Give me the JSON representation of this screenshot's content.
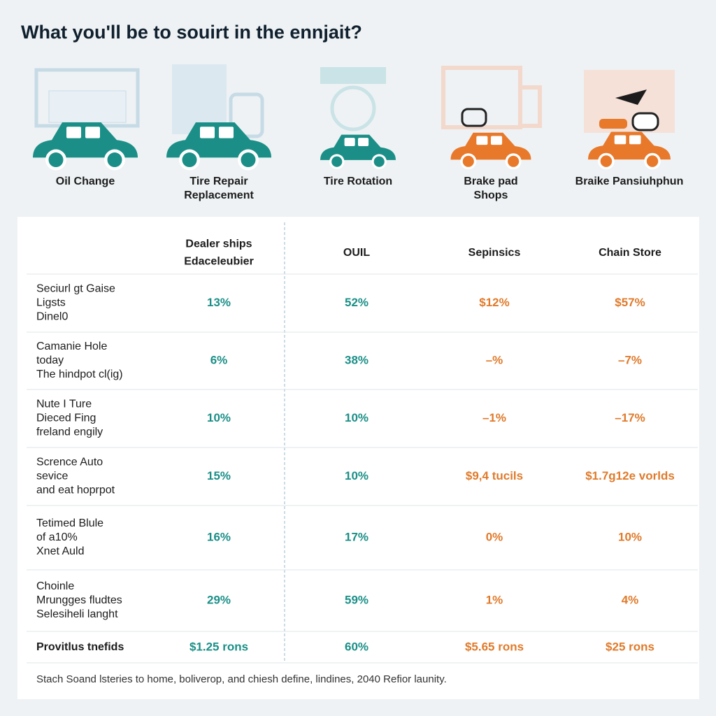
{
  "header": {
    "title": "What you'll be to souirt in the ennjait?"
  },
  "services": [
    {
      "label": [
        "Oil Change"
      ]
    },
    {
      "label": [
        "Tire Repair",
        "Replacement"
      ]
    },
    {
      "label": [
        "Tire Rotation"
      ]
    },
    {
      "label": [
        "Brake pad",
        "Shops"
      ]
    },
    {
      "label": [
        "Braike Pansiuhphun"
      ]
    }
  ],
  "table": {
    "columns": [
      [
        "Dealer ships",
        "Edaceleubier"
      ],
      [
        "OUIL"
      ],
      [
        "Sepinsics"
      ],
      [
        "Chain Store"
      ]
    ],
    "rows": [
      {
        "label": [
          "Seciurl gt Gaise",
          "Ligsts",
          "Dinel0"
        ],
        "cells": [
          "13%",
          "52%",
          "$12%",
          "$57%"
        ]
      },
      {
        "label": [
          "Camanie Hole",
          "today",
          "The hindpot cl(ig)"
        ],
        "cells": [
          "6%",
          "38%",
          "–%",
          "–7%"
        ]
      },
      {
        "label": [
          "Nute I Ture",
          "Dieced Fing",
          "freland engily"
        ],
        "cells": [
          "10%",
          "10%",
          "–1%",
          "–17%"
        ]
      },
      {
        "label": [
          "Scrence Auto",
          "sevice",
          "and eat hoprpot"
        ],
        "cells": [
          "15%",
          "10%",
          "$9,4 tucils",
          "$1.7g12e vorlds"
        ]
      },
      {
        "label": [
          "Tetimed Blule",
          "of a10%",
          "Xnet Auld"
        ],
        "cells": [
          "16%",
          "17%",
          "0%",
          "10%"
        ]
      },
      {
        "label": [
          "Choinle",
          "Mrungges fludtes",
          "Selesiheli langht"
        ],
        "cells": [
          "29%",
          "59%",
          "1%",
          "4%"
        ]
      }
    ],
    "total": {
      "label": "Provitlus tnefids",
      "cells": [
        "$1.25 rons",
        "60%",
        "$5.65 rons",
        "$25 rons"
      ]
    }
  },
  "footnote": "Stach Soand lsteries to home, boliverop, and chiesh define, lindines, 2040 Refior launity."
}
